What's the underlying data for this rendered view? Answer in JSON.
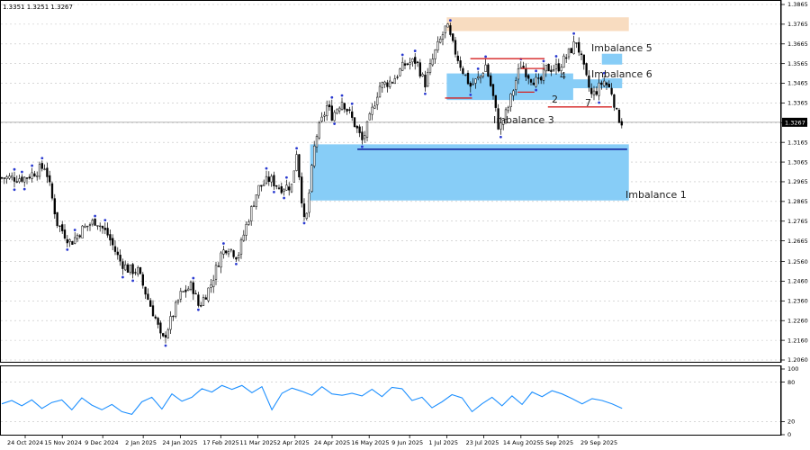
{
  "header": {
    "ohlc_text": "1.3351 1.3251 1.3267"
  },
  "colors": {
    "imbalance": "#87cdf7",
    "supply": "#f8dcc0",
    "level_red": "#d42020",
    "level_blue": "#1428a0",
    "candles": "#000000",
    "fractal": "#2a3ad0",
    "oscillator": "#1e90ff"
  },
  "chart_data": [
    {
      "type": "candlestick",
      "title": "",
      "x_tick_labels": [
        "24 Oct 2024",
        "15 Nov 2024",
        "9 Dec 2024",
        "2 Jan 2025",
        "24 Jan 2025",
        "17 Feb 2025",
        "11 Mar 2025",
        "2 Apr 2025",
        "24 Apr 2025",
        "16 May 2025",
        "9 Jun 2025",
        "1 Jul 2025",
        "23 Jul 2025",
        "14 Aug 2025",
        "5 Sep 2025",
        "29 Sep 2025"
      ],
      "y_tick_labels": [
        "1.3865",
        "1.3765",
        "1.3665",
        "1.3565",
        "1.3465",
        "1.3365",
        "1.3265",
        "1.3165",
        "1.3065",
        "1.2965",
        "1.2865",
        "1.2765",
        "1.2665",
        "1.2560",
        "1.2460",
        "1.2360",
        "1.2260",
        "1.2160",
        "1.2060"
      ],
      "ylim": [
        1.2035,
        1.3885
      ],
      "current_price": "1.3267",
      "close_path": [
        [
          "24 Oct 2024",
          1.2985
        ],
        [
          "5 Nov 2024",
          1.3045
        ],
        [
          "12 Nov 2024",
          1.2755
        ],
        [
          "20 Nov 2024",
          1.2655
        ],
        [
          "27 Nov 2024",
          1.2725
        ],
        [
          "5 Dec 2024",
          1.277
        ],
        [
          "12 Dec 2024",
          1.2695
        ],
        [
          "19 Dec 2024",
          1.2565
        ],
        [
          "24 Dec 2024",
          1.252
        ],
        [
          "30 Dec 2024",
          1.251
        ],
        [
          "3 Jan 2025",
          1.241
        ],
        [
          "10 Jan 2025",
          1.2255
        ],
        [
          "13 Jan 2025",
          1.215
        ],
        [
          "17 Jan 2025",
          1.223
        ],
        [
          "24 Jan 2025",
          1.239
        ],
        [
          "31 Jan 2025",
          1.244
        ],
        [
          "4 Feb 2025",
          1.233
        ],
        [
          "11 Feb 2025",
          1.244
        ],
        [
          "17 Feb 2025",
          1.2595
        ],
        [
          "21 Feb 2025",
          1.264
        ],
        [
          "27 Feb 2025",
          1.2585
        ],
        [
          "4 Mar 2025",
          1.274
        ],
        [
          "11 Mar 2025",
          1.293
        ],
        [
          "18 Mar 2025",
          1.298
        ],
        [
          "24 Mar 2025",
          1.2935
        ],
        [
          "31 Mar 2025",
          1.2945
        ],
        [
          "3 Apr 2025",
          1.312
        ],
        [
          "8 Apr 2025",
          1.272
        ],
        [
          "14 Apr 2025",
          1.318
        ],
        [
          "21 Apr 2025",
          1.335
        ],
        [
          "24 Apr 2025",
          1.33
        ],
        [
          "30 Apr 2025",
          1.338
        ],
        [
          "7 May 2025",
          1.3265
        ],
        [
          "12 May 2025",
          1.317
        ],
        [
          "16 May 2025",
          1.3275
        ],
        [
          "22 May 2025",
          1.345
        ],
        [
          "30 May 2025",
          1.348
        ],
        [
          "6 Jun 2025",
          1.356
        ],
        [
          "13 Jun 2025",
          1.358
        ],
        [
          "18 Jun 2025",
          1.346
        ],
        [
          "24 Jun 2025",
          1.362
        ],
        [
          "1 Jul 2025",
          1.376
        ],
        [
          "4 Jul 2025",
          1.367
        ],
        [
          "10 Jul 2025",
          1.354
        ],
        [
          "15 Jul 2025",
          1.345
        ],
        [
          "21 Jul 2025",
          1.35
        ],
        [
          "24 Jul 2025",
          1.356
        ],
        [
          "28 Jul 2025",
          1.342
        ],
        [
          "1 Aug 2025",
          1.323
        ],
        [
          "6 Aug 2025",
          1.333
        ],
        [
          "11 Aug 2025",
          1.348
        ],
        [
          "14 Aug 2025",
          1.356
        ],
        [
          "19 Aug 2025",
          1.35
        ],
        [
          "25 Aug 2025",
          1.346
        ],
        [
          "29 Aug 2025",
          1.354
        ],
        [
          "5 Sep 2025",
          1.3545
        ],
        [
          "10 Sep 2025",
          1.36
        ],
        [
          "16 Sep 2025",
          1.368
        ],
        [
          "22 Sep 2025",
          1.348
        ],
        [
          "25 Sep 2025",
          1.34
        ],
        [
          "29 Sep 2025",
          1.344
        ],
        [
          "2 Oct 2025",
          1.348
        ],
        [
          "7 Oct 2025",
          1.342
        ],
        [
          "10 Oct 2025",
          1.33
        ],
        [
          "13 Oct 2025",
          1.3267
        ]
      ]
    },
    {
      "type": "line",
      "title": "",
      "y_tick_labels": [
        "100",
        "80",
        "20",
        "0"
      ],
      "ylim": [
        0,
        100
      ],
      "values_sampled": [
        47,
        52,
        44,
        53,
        40,
        49,
        53,
        38,
        56,
        45,
        38,
        46,
        35,
        31,
        50,
        57,
        39,
        62,
        51,
        57,
        70,
        65,
        75,
        69,
        75,
        64,
        73,
        38,
        63,
        71,
        66,
        60,
        73,
        62,
        60,
        63,
        59,
        69,
        58,
        72,
        70,
        52,
        57,
        41,
        50,
        61,
        56,
        35,
        47,
        57,
        44,
        59,
        46,
        65,
        58,
        67,
        62,
        55,
        47,
        55,
        52,
        47,
        40
      ]
    }
  ],
  "zones": [
    {
      "label": "Imbalance 1",
      "y_top": 1.3155,
      "y_bottom": 1.287,
      "from": "11 Apr 2025",
      "to": "17 Oct 2025"
    },
    {
      "label": "Imbalance 3",
      "y_top": 1.3515,
      "y_bottom": 1.338,
      "from": "1 Jul 2025",
      "to": "14 Sep 2025"
    },
    {
      "label": "Imbalance 5",
      "y_top": 1.3615,
      "y_bottom": 1.356,
      "from": "1 Oct 2025",
      "to": "13 Oct 2025"
    },
    {
      "label": "Imbalance 6",
      "y_top": 1.349,
      "y_bottom": 1.347,
      "from": "1 Oct 2025",
      "to": "13 Oct 2025"
    },
    {
      "label": "",
      "y_top": 1.3485,
      "y_bottom": 1.344,
      "from": "23 Jul 2025",
      "to": "13 Oct 2025"
    },
    {
      "label": "",
      "y_top": 1.38,
      "y_bottom": 1.373,
      "from": "1 Jul 2025",
      "to": "17 Oct 2025"
    }
  ],
  "levels": [
    {
      "label": "",
      "price": 1.313,
      "from": "9 May 2025",
      "to": "16 Oct 2025",
      "color": "blue"
    },
    {
      "label": "",
      "price": 1.359,
      "from": "15 Jul 2025",
      "to": "28 Aug 2025",
      "color": "red"
    },
    {
      "label": "",
      "price": 1.339,
      "from": "30 Jun 2025",
      "to": "16 Jul 2025",
      "color": "red"
    },
    {
      "label": "",
      "price": 1.354,
      "from": "14 Aug 2025",
      "to": "28 Aug 2025",
      "color": "red"
    },
    {
      "label": "",
      "price": 1.342,
      "from": "12 Aug 2025",
      "to": "22 Aug 2025",
      "color": "red"
    },
    {
      "label": "",
      "price": 1.3345,
      "from": "30 Aug 2025",
      "to": "7 Oct 2025",
      "color": "red"
    }
  ],
  "level_tags": [
    "2",
    "4",
    "7"
  ]
}
